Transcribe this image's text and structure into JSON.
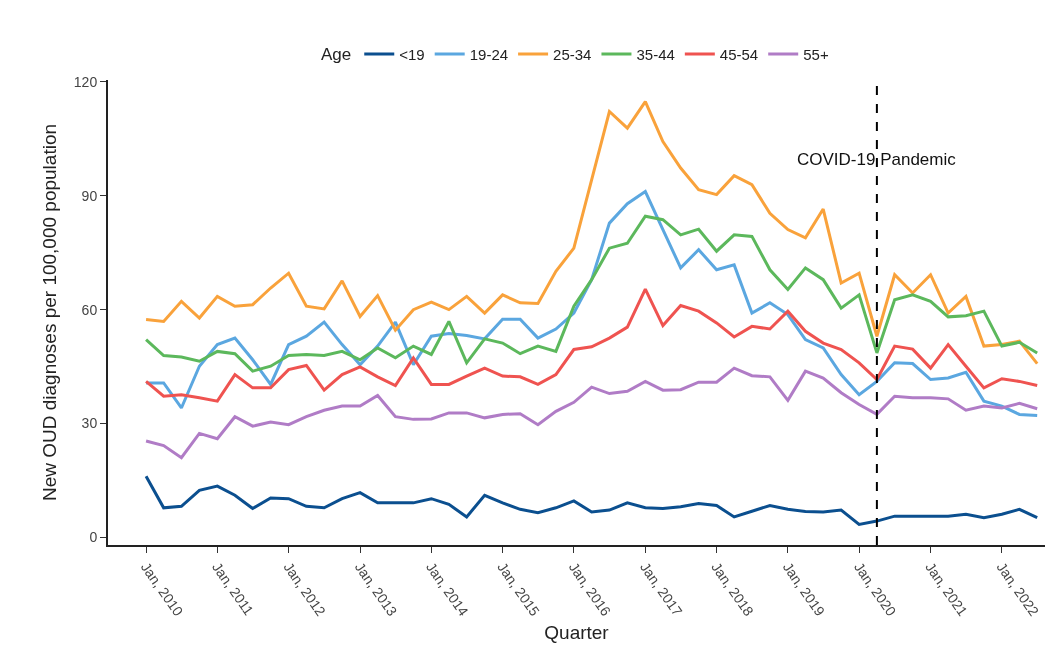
{
  "chart_data": {
    "type": "line",
    "xlabel": "Quarter",
    "ylabel": "New OUD diagnoses per 100,000 population",
    "legend_title": "Age",
    "legend": "top",
    "grid": false,
    "line_style": "solid",
    "marker": "none",
    "x": [
      "2010-01",
      "2010-04",
      "2010-07",
      "2010-10",
      "2011-01",
      "2011-04",
      "2011-07",
      "2011-10",
      "2012-01",
      "2012-04",
      "2012-07",
      "2012-10",
      "2013-01",
      "2013-04",
      "2013-07",
      "2013-10",
      "2014-01",
      "2014-04",
      "2014-07",
      "2014-10",
      "2015-01",
      "2015-04",
      "2015-07",
      "2015-10",
      "2016-01",
      "2016-04",
      "2016-07",
      "2016-10",
      "2017-01",
      "2017-04",
      "2017-07",
      "2017-10",
      "2018-01",
      "2018-04",
      "2018-07",
      "2018-10",
      "2019-01",
      "2019-04",
      "2019-07",
      "2019-10",
      "2020-01",
      "2020-04",
      "2020-07",
      "2020-10",
      "2021-01",
      "2021-04",
      "2021-07",
      "2021-10",
      "2022-01",
      "2022-04",
      "2022-07"
    ],
    "xlim": [
      "2009-06-20",
      "2022-08-10"
    ],
    "xticks": [
      {
        "value": "2010-01-01",
        "label": "Jan, 2010"
      },
      {
        "value": "2011-01-01",
        "label": "Jan, 2011"
      },
      {
        "value": "2012-01-01",
        "label": "Jan, 2012"
      },
      {
        "value": "2013-01-01",
        "label": "Jan, 2013"
      },
      {
        "value": "2014-01-01",
        "label": "Jan, 2014"
      },
      {
        "value": "2015-01-01",
        "label": "Jan, 2015"
      },
      {
        "value": "2016-01-01",
        "label": "Jan, 2016"
      },
      {
        "value": "2017-01-01",
        "label": "Jan, 2017"
      },
      {
        "value": "2018-01-01",
        "label": "Jan, 2018"
      },
      {
        "value": "2019-01-01",
        "label": "Jan, 2019"
      },
      {
        "value": "2020-01-01",
        "label": "Jan, 2020"
      },
      {
        "value": "2021-01-01",
        "label": "Jan, 2021"
      },
      {
        "value": "2022-01-01",
        "label": "Jan, 2022"
      }
    ],
    "ylim": [
      -2,
      120.5
    ],
    "yticks": [
      0,
      30,
      60,
      90,
      120
    ],
    "ref_lines": [
      {
        "axis": "x",
        "value": "2020-04-01",
        "label": "COVID-19 Pandemic",
        "color": "#000000",
        "line_style": "dashed"
      }
    ],
    "series": [
      {
        "name": "<19",
        "color": "#0b4f8f",
        "values": [
          16.1,
          7.8,
          8.2,
          12.4,
          13.5,
          11.1,
          7.6,
          10.4,
          10.2,
          8.2,
          7.8,
          10.2,
          11.8,
          9.1,
          9.1,
          9.1,
          10.2,
          8.7,
          5.4,
          11.1,
          9.1,
          7.4,
          6.5,
          7.8,
          9.6,
          6.7,
          7.2,
          9.1,
          7.8,
          7.6,
          8.1,
          8.9,
          8.4,
          5.4,
          6.9,
          8.4,
          7.4,
          6.8,
          6.7,
          7.2,
          3.4,
          4.3,
          5.6,
          5.6,
          5.6,
          5.6,
          6.1,
          5.2,
          6.1,
          7.4,
          5.2
        ]
      },
      {
        "name": "19-24",
        "color": "#5ba7e0",
        "values": [
          40.7,
          40.7,
          34.1,
          45.1,
          50.8,
          52.5,
          46.8,
          40.3,
          50.8,
          53.0,
          56.7,
          50.8,
          45.5,
          50.4,
          56.7,
          45.5,
          53.0,
          53.7,
          53.2,
          52.3,
          57.5,
          57.5,
          52.5,
          54.9,
          59.1,
          67.9,
          82.8,
          87.9,
          91.1,
          81.1,
          71.0,
          75.8,
          70.5,
          71.8,
          59.1,
          61.8,
          58.7,
          52.1,
          49.9,
          42.9,
          37.6,
          41.1,
          46.0,
          45.8,
          41.6,
          42.0,
          43.5,
          35.9,
          34.6,
          32.4,
          32.1
        ]
      },
      {
        "name": "25-34",
        "color": "#f9a23b",
        "values": [
          57.4,
          56.9,
          62.2,
          57.8,
          63.5,
          60.9,
          61.3,
          65.7,
          69.6,
          60.9,
          60.2,
          67.6,
          58.2,
          63.7,
          54.6,
          60.0,
          62.0,
          60.0,
          63.5,
          59.1,
          63.9,
          61.8,
          61.6,
          70.1,
          76.2,
          94.2,
          112.2,
          107.8,
          114.8,
          104.3,
          97.3,
          91.6,
          90.3,
          95.3,
          92.9,
          85.4,
          81.1,
          78.9,
          86.5,
          67.0,
          69.6,
          53.0,
          69.2,
          64.4,
          69.2,
          59.1,
          63.5,
          50.4,
          50.8,
          51.7,
          45.8
        ]
      },
      {
        "name": "35-44",
        "color": "#5cb85c",
        "values": [
          52.1,
          47.9,
          47.5,
          46.4,
          49.0,
          48.4,
          43.8,
          45.1,
          47.9,
          48.2,
          47.9,
          49.0,
          46.8,
          49.9,
          47.3,
          50.4,
          48.2,
          56.9,
          46.0,
          52.3,
          51.2,
          48.4,
          50.4,
          49.0,
          60.9,
          67.9,
          76.2,
          77.5,
          84.6,
          83.7,
          79.7,
          81.2,
          75.4,
          79.7,
          79.3,
          70.5,
          65.3,
          71.0,
          67.9,
          60.4,
          63.9,
          48.6,
          62.6,
          63.9,
          62.2,
          58.1,
          58.4,
          59.6,
          50.4,
          51.4,
          48.6
        ]
      },
      {
        "name": "45-54",
        "color": "#ef5350",
        "values": [
          41.1,
          37.2,
          37.6,
          36.8,
          35.9,
          42.9,
          39.4,
          39.4,
          44.2,
          45.3,
          38.8,
          42.9,
          44.9,
          42.3,
          40.0,
          47.3,
          40.3,
          40.3,
          42.5,
          44.6,
          42.5,
          42.3,
          40.3,
          42.9,
          49.5,
          50.2,
          52.5,
          55.4,
          65.4,
          55.8,
          61.1,
          59.6,
          56.5,
          52.8,
          55.6,
          54.9,
          59.6,
          54.3,
          51.2,
          49.5,
          46.0,
          41.6,
          50.4,
          49.6,
          44.6,
          50.8,
          45.1,
          39.4,
          41.8,
          41.1,
          40.0
        ]
      },
      {
        "name": "55+",
        "color": "#b07cc6",
        "values": [
          25.4,
          24.2,
          21.0,
          27.4,
          26.0,
          31.8,
          29.3,
          30.4,
          29.7,
          31.8,
          33.5,
          34.6,
          34.6,
          37.4,
          31.8,
          31.1,
          31.2,
          32.8,
          32.8,
          31.5,
          32.4,
          32.6,
          29.7,
          33.2,
          35.6,
          39.6,
          37.9,
          38.5,
          41.1,
          38.8,
          38.9,
          40.9,
          40.9,
          44.6,
          42.6,
          42.3,
          36.1,
          43.8,
          42.0,
          38.1,
          35.0,
          32.4,
          37.2,
          36.8,
          36.8,
          36.5,
          33.5,
          34.6,
          34.1,
          35.3,
          33.9
        ]
      }
    ]
  }
}
